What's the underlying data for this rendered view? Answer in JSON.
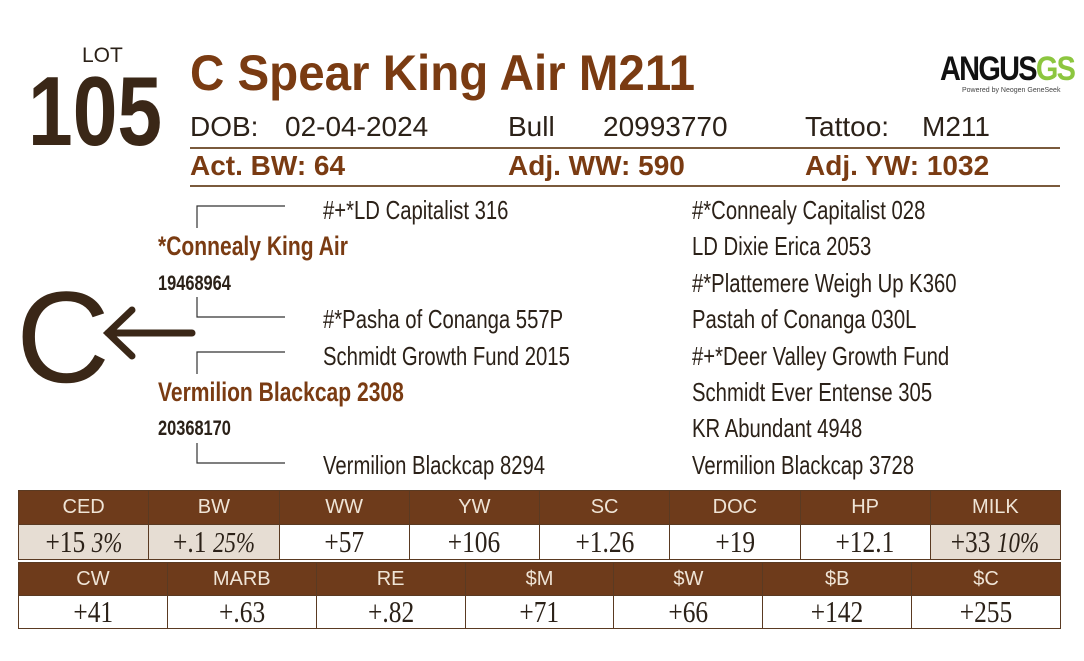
{
  "lot": {
    "label": "LOT",
    "number": "105"
  },
  "name": "C Spear King Air M211",
  "logo": {
    "main": "ANGUS",
    "suffix": "GS",
    "tagline": "Powered by Neogen GeneSeek"
  },
  "info": {
    "dob_label": "DOB:",
    "dob": "02-04-2024",
    "sex": "Bull",
    "registration": "20993770",
    "tattoo_label": "Tattoo:",
    "tattoo": "M211"
  },
  "weights": [
    "Act. BW: 64",
    "Adj. WW: 590",
    "Adj. YW: 1032"
  ],
  "mark": "C",
  "pedigree": {
    "sire": {
      "name": "*Connealy King Air",
      "registration": "19468964"
    },
    "dam": {
      "name": "Vermilion Blackcap 2308",
      "registration": "20368170"
    },
    "grandparents": [
      "#+*LD Capitalist 316",
      "#*Pasha of Conanga 557P",
      "Schmidt Growth Fund 2015",
      "Vermilion Blackcap 8294"
    ],
    "great_grandparents": [
      "#*Connealy Capitalist 028",
      "LD Dixie Erica 2053",
      "#*Plattemere Weigh Up K360",
      "Pastah of Conanga 030L",
      "#+*Deer Valley Growth Fund",
      "Schmidt Ever Entense 305",
      "KR Abundant 4948",
      "Vermilion Blackcap 3728"
    ]
  },
  "epd_rows": [
    [
      {
        "trait": "CED",
        "value": "+15",
        "percentile": "3%"
      },
      {
        "trait": "BW",
        "value": "+.1",
        "percentile": "25%"
      },
      {
        "trait": "WW",
        "value": "+57"
      },
      {
        "trait": "YW",
        "value": "+106"
      },
      {
        "trait": "SC",
        "value": "+1.26"
      },
      {
        "trait": "DOC",
        "value": "+19"
      },
      {
        "trait": "HP",
        "value": "+12.1"
      },
      {
        "trait": "MILK",
        "value": "+33",
        "percentile": "10%"
      }
    ],
    [
      {
        "trait": "CW",
        "value": "+41"
      },
      {
        "trait": "MARB",
        "value": "+.63"
      },
      {
        "trait": "RE",
        "value": "+.82"
      },
      {
        "trait": "$M",
        "value": "+71"
      },
      {
        "trait": "$W",
        "value": "+66"
      },
      {
        "trait": "$B",
        "value": "+142"
      },
      {
        "trait": "$C",
        "value": "+255"
      }
    ]
  ]
}
